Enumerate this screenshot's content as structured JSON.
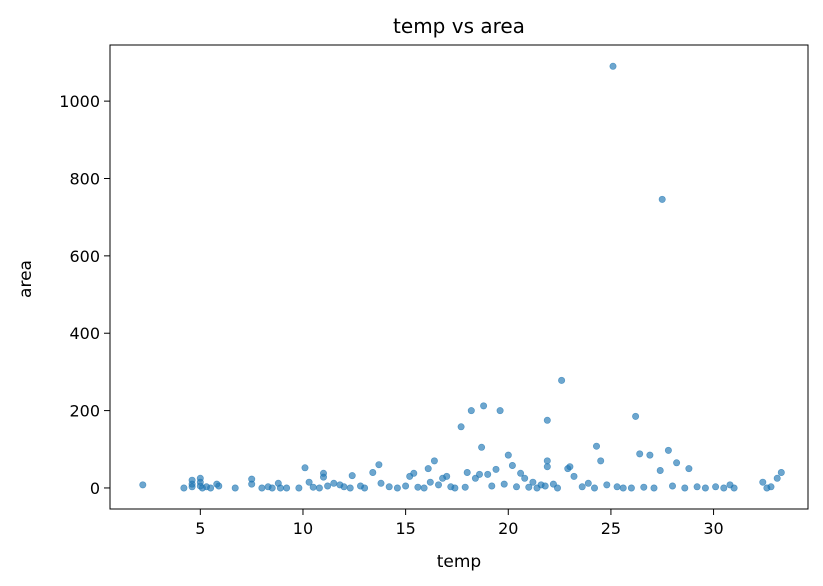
{
  "chart_data": {
    "type": "scatter",
    "title": "temp vs area",
    "xlabel": "temp",
    "ylabel": "area",
    "xlim": [
      0.6,
      34.6
    ],
    "ylim": [
      -54.4,
      1145.1
    ],
    "xticks": [
      5,
      10,
      15,
      20,
      25,
      30
    ],
    "yticks": [
      0,
      200,
      400,
      600,
      800,
      1000
    ],
    "grid": false,
    "legend": "none",
    "marker_color": "#1f77b4",
    "marker_alpha": 0.65,
    "points": [
      [
        2.2,
        8
      ],
      [
        4.2,
        0
      ],
      [
        4.6,
        20
      ],
      [
        4.6,
        10
      ],
      [
        4.6,
        3
      ],
      [
        5.0,
        25
      ],
      [
        5.0,
        15
      ],
      [
        5.0,
        5
      ],
      [
        5.1,
        0
      ],
      [
        5.3,
        3
      ],
      [
        5.5,
        0
      ],
      [
        5.8,
        10
      ],
      [
        5.9,
        5
      ],
      [
        6.7,
        0
      ],
      [
        7.5,
        23
      ],
      [
        7.5,
        10
      ],
      [
        8.0,
        0
      ],
      [
        8.3,
        3
      ],
      [
        8.5,
        0
      ],
      [
        8.8,
        12
      ],
      [
        8.9,
        0
      ],
      [
        9.2,
        0
      ],
      [
        9.8,
        0
      ],
      [
        10.1,
        52
      ],
      [
        10.3,
        15
      ],
      [
        10.5,
        2
      ],
      [
        10.8,
        0
      ],
      [
        11.0,
        38
      ],
      [
        11.0,
        28
      ],
      [
        11.2,
        5
      ],
      [
        11.5,
        12
      ],
      [
        11.8,
        8
      ],
      [
        12.0,
        3
      ],
      [
        12.3,
        0
      ],
      [
        12.4,
        32
      ],
      [
        12.8,
        5
      ],
      [
        13.0,
        0
      ],
      [
        13.4,
        40
      ],
      [
        13.7,
        60
      ],
      [
        13.8,
        12
      ],
      [
        14.2,
        3
      ],
      [
        14.6,
        0
      ],
      [
        15.0,
        5
      ],
      [
        15.2,
        30
      ],
      [
        15.4,
        38
      ],
      [
        15.6,
        2
      ],
      [
        15.9,
        0
      ],
      [
        16.1,
        50
      ],
      [
        16.2,
        15
      ],
      [
        16.4,
        70
      ],
      [
        16.6,
        8
      ],
      [
        16.8,
        25
      ],
      [
        17.0,
        30
      ],
      [
        17.2,
        3
      ],
      [
        17.4,
        0
      ],
      [
        17.7,
        158
      ],
      [
        17.9,
        2
      ],
      [
        18.0,
        40
      ],
      [
        18.2,
        200
      ],
      [
        18.4,
        25
      ],
      [
        18.6,
        35
      ],
      [
        18.7,
        105
      ],
      [
        18.8,
        212
      ],
      [
        19.0,
        35
      ],
      [
        19.2,
        5
      ],
      [
        19.4,
        48
      ],
      [
        19.6,
        200
      ],
      [
        19.8,
        10
      ],
      [
        20.0,
        85
      ],
      [
        20.2,
        58
      ],
      [
        20.4,
        3
      ],
      [
        20.6,
        38
      ],
      [
        20.8,
        25
      ],
      [
        21.0,
        2
      ],
      [
        21.2,
        15
      ],
      [
        21.4,
        0
      ],
      [
        21.6,
        8
      ],
      [
        21.8,
        5
      ],
      [
        21.9,
        175
      ],
      [
        21.9,
        70
      ],
      [
        21.9,
        55
      ],
      [
        22.2,
        10
      ],
      [
        22.4,
        0
      ],
      [
        22.6,
        278
      ],
      [
        22.9,
        50
      ],
      [
        23.0,
        55
      ],
      [
        23.2,
        30
      ],
      [
        23.6,
        3
      ],
      [
        23.9,
        12
      ],
      [
        24.2,
        0
      ],
      [
        24.3,
        108
      ],
      [
        24.5,
        70
      ],
      [
        24.8,
        8
      ],
      [
        25.1,
        1090
      ],
      [
        25.3,
        3
      ],
      [
        25.6,
        0
      ],
      [
        26.0,
        0
      ],
      [
        26.2,
        185
      ],
      [
        26.4,
        88
      ],
      [
        26.6,
        2
      ],
      [
        26.9,
        85
      ],
      [
        27.1,
        0
      ],
      [
        27.4,
        45
      ],
      [
        27.5,
        746
      ],
      [
        27.8,
        97
      ],
      [
        28.0,
        5
      ],
      [
        28.2,
        65
      ],
      [
        28.6,
        0
      ],
      [
        28.8,
        50
      ],
      [
        29.2,
        3
      ],
      [
        29.6,
        0
      ],
      [
        30.1,
        3
      ],
      [
        30.5,
        0
      ],
      [
        30.8,
        8
      ],
      [
        31.0,
        0
      ],
      [
        32.4,
        15
      ],
      [
        32.6,
        0
      ],
      [
        32.8,
        3
      ],
      [
        33.1,
        25
      ],
      [
        33.3,
        40
      ]
    ]
  }
}
